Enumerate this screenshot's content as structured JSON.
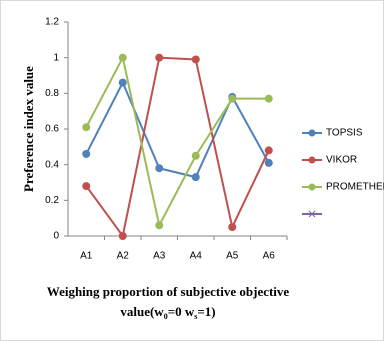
{
  "chart_data": {
    "type": "line",
    "ylabel": "Preference index value",
    "xlabel_lines": [
      "Weighing proportion of subjective objective",
      [
        "value(w",
        "0",
        "=0 w",
        "s",
        "=1)"
      ]
    ],
    "categories": [
      "A1",
      "A2",
      "A3",
      "A4",
      "A5",
      "A6"
    ],
    "series": [
      {
        "name": "TOPSIS",
        "color": "#4f81bd",
        "values": [
          0.46,
          0.86,
          0.38,
          0.33,
          0.78,
          0.41
        ]
      },
      {
        "name": "VIKOR",
        "color": "#c0504d",
        "values": [
          0.28,
          0,
          1,
          0.99,
          0.05,
          0.48
        ]
      },
      {
        "name": "PROMETHEE",
        "color": "#9bbb59",
        "values": [
          0.61,
          1,
          0.06,
          0.45,
          0.77,
          0.77
        ]
      }
    ],
    "ylim": [
      0,
      1.2
    ],
    "yticks": [
      0,
      0.2,
      0.4,
      0.6,
      0.8,
      1,
      1.2
    ],
    "grid": false,
    "legend": "right"
  }
}
